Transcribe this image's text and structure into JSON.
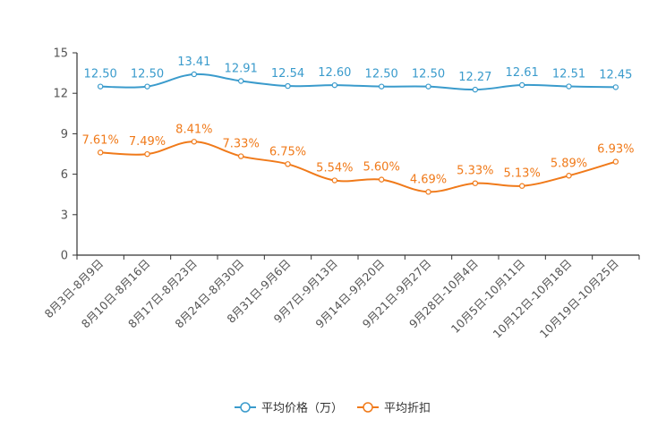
{
  "chart_data": {
    "type": "line",
    "title": "",
    "xlabel": "",
    "ylabel": "",
    "ylim": [
      0,
      15
    ],
    "yticks": [
      0,
      3,
      6,
      9,
      12,
      15
    ],
    "grid": false,
    "legend_position": "bottom-center",
    "categories": [
      "8月3日-8月9日",
      "8月10日-8月16日",
      "8月17日-8月23日",
      "8月24日-8月30日",
      "8月31日-9月6日",
      "9月7日-9月13日",
      "9月14日-9月20日",
      "9月21日-9月27日",
      "9月28日-10月4日",
      "10月5日-10月11日",
      "10月12日-10月18日",
      "10月19日-10月25日"
    ],
    "series": [
      {
        "name": "平均价格（万）",
        "color": "#3A9BCC",
        "values": [
          12.5,
          12.5,
          13.41,
          12.91,
          12.54,
          12.6,
          12.5,
          12.5,
          12.27,
          12.61,
          12.51,
          12.45
        ],
        "labels": [
          "12.50",
          "12.50",
          "13.41",
          "12.91",
          "12.54",
          "12.60",
          "12.50",
          "12.50",
          "12.27",
          "12.61",
          "12.51",
          "12.45"
        ]
      },
      {
        "name": "平均折扣",
        "color": "#F07A1A",
        "values": [
          7.61,
          7.49,
          8.41,
          7.33,
          6.75,
          5.54,
          5.6,
          4.69,
          5.33,
          5.13,
          5.89,
          6.93
        ],
        "labels": [
          "7.61%",
          "7.49%",
          "8.41%",
          "7.33%",
          "6.75%",
          "5.54%",
          "5.60%",
          "4.69%",
          "5.33%",
          "5.13%",
          "5.89%",
          "6.93%"
        ]
      }
    ]
  }
}
